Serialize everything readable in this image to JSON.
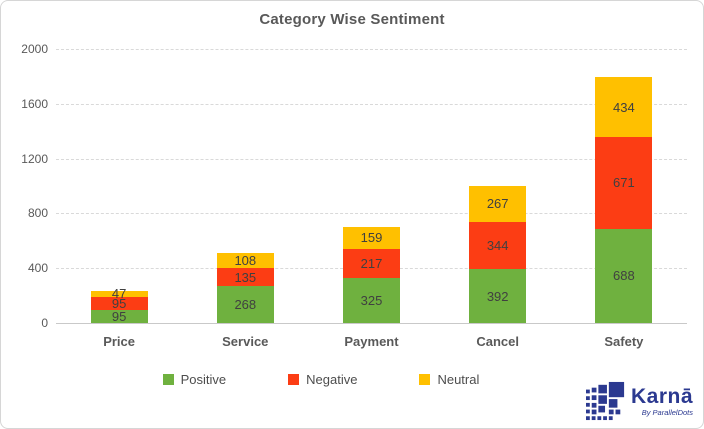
{
  "title": "Category Wise Sentiment",
  "chart_data": {
    "type": "bar",
    "stacked": true,
    "title": "Category Wise Sentiment",
    "categories": [
      "Price",
      "Service",
      "Payment",
      "Cancel",
      "Safety"
    ],
    "series": [
      {
        "name": "Positive",
        "color": "#6FB13F",
        "values": [
          95,
          268,
          325,
          392,
          688
        ]
      },
      {
        "name": "Negative",
        "color": "#FC3D14",
        "values": [
          95,
          135,
          217,
          344,
          671
        ]
      },
      {
        "name": "Neutral",
        "color": "#FFC000",
        "values": [
          47,
          108,
          159,
          267,
          434
        ]
      }
    ],
    "xlabel": "",
    "ylabel": "",
    "ylim": [
      0,
      2000
    ],
    "yticks": [
      0,
      400,
      800,
      1200,
      1600,
      2000
    ],
    "grid": "horizontal-dashed",
    "legend_position": "bottom"
  },
  "colors": {
    "title_text": "#595959",
    "axis_text": "#595959",
    "data_label_text": "#404040",
    "gridline": "#D9D9D9",
    "frame_border": "#D6D6D6",
    "logo_blue": "#2B3990"
  },
  "logo": {
    "brand": "Karnā",
    "tagline": "By ParallelDots"
  }
}
